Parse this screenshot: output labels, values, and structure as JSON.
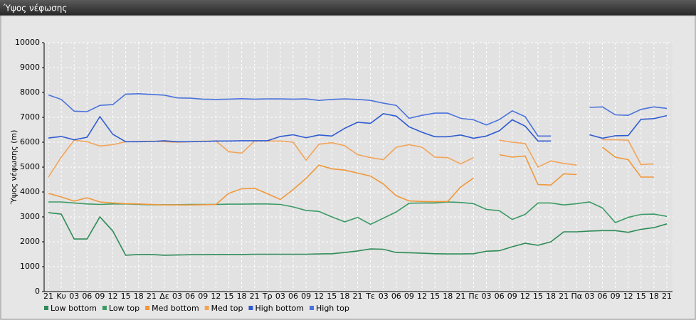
{
  "chart_data": {
    "type": "line",
    "title": "Ύψος νέφωσης",
    "y_label": "Ύψος νέφωσης (m)",
    "categories": [
      "21",
      "Κυ",
      "03",
      "06",
      "09",
      "12",
      "15",
      "18",
      "21",
      "Δε",
      "03",
      "06",
      "09",
      "12",
      "15",
      "18",
      "21",
      "Τρ",
      "03",
      "06",
      "09",
      "12",
      "15",
      "18",
      "21",
      "Τε",
      "03",
      "06",
      "09",
      "12",
      "15",
      "18",
      "21",
      "Πε",
      "03",
      "06",
      "09",
      "12",
      "15",
      "18",
      "21",
      "Πα",
      "03",
      "06",
      "09",
      "12",
      "15",
      "18",
      "21"
    ],
    "ylim": [
      0,
      10000
    ],
    "yticks": [
      0,
      1000,
      2000,
      3000,
      4000,
      5000,
      6000,
      7000,
      8000,
      9000,
      10000
    ],
    "grid": true,
    "legend": "bottom-left",
    "series": [
      {
        "name": "Low bottom",
        "color": "#2e8b57",
        "values": [
          3170,
          3110,
          2110,
          2110,
          3000,
          2430,
          1460,
          1490,
          1490,
          1460,
          1470,
          1480,
          1480,
          1490,
          1490,
          1490,
          1500,
          1500,
          1500,
          1500,
          1500,
          1510,
          1520,
          1570,
          1630,
          1710,
          1700,
          1570,
          1560,
          1540,
          1520,
          1510,
          1510,
          1520,
          1620,
          1640,
          1800,
          1940,
          1860,
          2000,
          2400,
          2400,
          2430,
          2450,
          2450,
          2380,
          2500,
          2570,
          2720
        ]
      },
      {
        "name": "Low top",
        "color": "#3c9a66",
        "values": [
          3600,
          3600,
          3560,
          3520,
          3500,
          3520,
          3520,
          3500,
          3490,
          3490,
          3490,
          3500,
          3500,
          3500,
          3510,
          3510,
          3520,
          3520,
          3500,
          3400,
          3260,
          3220,
          3000,
          2800,
          2980,
          2700,
          2950,
          3200,
          3550,
          3560,
          3560,
          3600,
          3580,
          3530,
          3300,
          3250,
          2900,
          3100,
          3560,
          3560,
          3480,
          3530,
          3600,
          3360,
          2770,
          2980,
          3100,
          3110,
          3020
        ]
      },
      {
        "name": "Med bottom",
        "color": "#f0983a",
        "values": [
          3950,
          3800,
          3630,
          3770,
          3600,
          3560,
          3530,
          3520,
          3500,
          3480,
          3480,
          3480,
          3490,
          3500,
          3950,
          4130,
          4150,
          3930,
          3700,
          4100,
          4550,
          5080,
          4930,
          4880,
          4760,
          4640,
          4320,
          3850,
          3640,
          3620,
          3610,
          3620,
          4200,
          4560,
          null,
          5500,
          5400,
          5450,
          4300,
          4280,
          4730,
          4700,
          null,
          5800,
          5400,
          5300,
          4600,
          4600,
          null
        ]
      },
      {
        "name": "Med top",
        "color": "#f2a45a",
        "values": [
          4600,
          5400,
          6080,
          6020,
          5850,
          5900,
          6020,
          6030,
          6040,
          6020,
          6000,
          6020,
          6040,
          6050,
          5620,
          5560,
          6050,
          6050,
          6050,
          6000,
          5280,
          5920,
          5980,
          5860,
          5500,
          5380,
          5300,
          5800,
          5900,
          5800,
          5400,
          5380,
          5130,
          5380,
          null,
          6080,
          6000,
          5950,
          5000,
          5250,
          5150,
          5080,
          null,
          6100,
          6100,
          6080,
          5100,
          5130,
          null
        ]
      },
      {
        "name": "High bottom",
        "color": "#2f5bd0",
        "values": [
          6170,
          6230,
          6100,
          6200,
          7030,
          6320,
          6020,
          6020,
          6030,
          6060,
          6020,
          6020,
          6030,
          6050,
          6050,
          6060,
          6060,
          6060,
          6230,
          6300,
          6180,
          6290,
          6250,
          6560,
          6800,
          6760,
          7150,
          7050,
          6620,
          6400,
          6220,
          6220,
          6290,
          6160,
          6250,
          6460,
          6900,
          6650,
          6050,
          6050,
          null,
          null,
          6300,
          6160,
          6260,
          6270,
          6920,
          6950,
          7070
        ]
      },
      {
        "name": "High top",
        "color": "#4a72dc",
        "values": [
          7900,
          7720,
          7250,
          7230,
          7480,
          7510,
          7930,
          7950,
          7920,
          7890,
          7780,
          7770,
          7730,
          7720,
          7730,
          7750,
          7730,
          7740,
          7740,
          7730,
          7740,
          7680,
          7720,
          7740,
          7720,
          7680,
          7570,
          7480,
          6960,
          7080,
          7170,
          7170,
          6960,
          6900,
          6690,
          6910,
          7260,
          7030,
          6250,
          6250,
          null,
          null,
          7400,
          7420,
          7100,
          7080,
          7320,
          7420,
          7360
        ]
      }
    ]
  }
}
